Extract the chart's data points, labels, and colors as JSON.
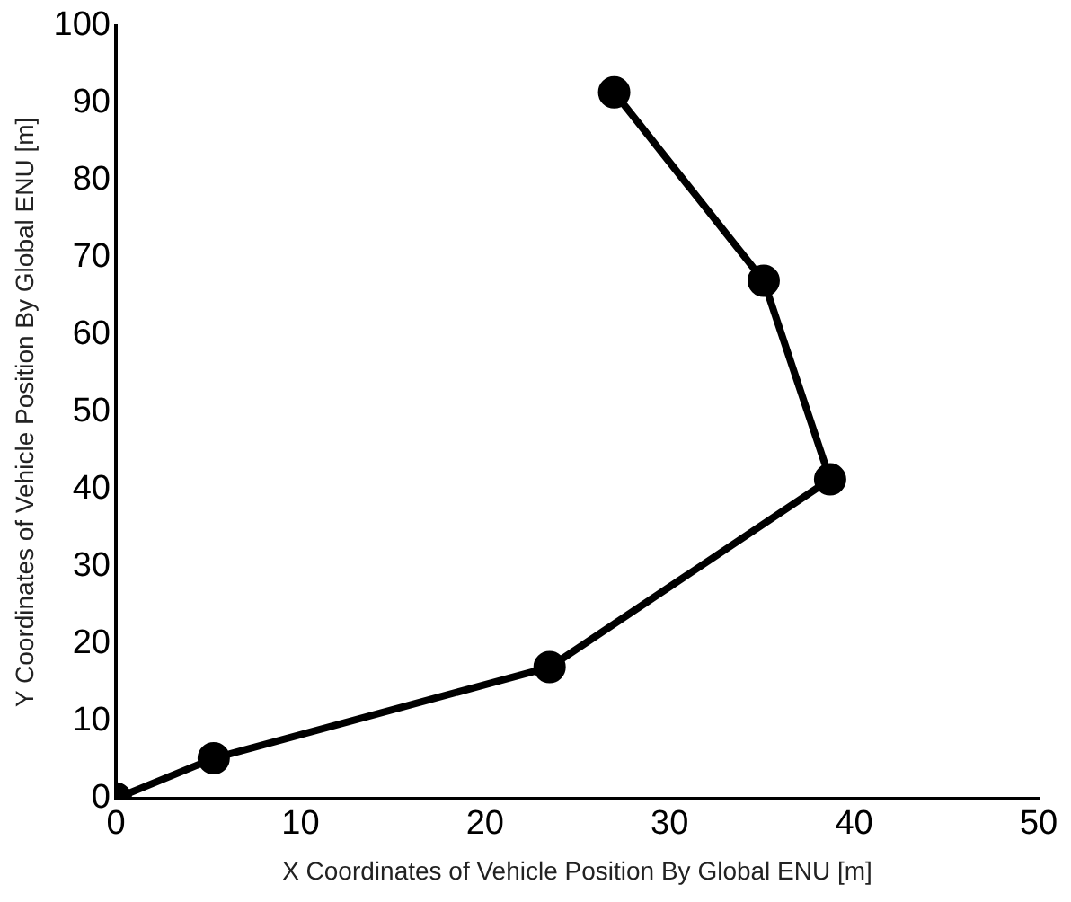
{
  "chart_data": {
    "type": "line",
    "xlabel": "X Coordinates of Vehicle Position By Global ENU [m]",
    "ylabel": "Y Coordinates of Vehicle Position By Global ENU [m]",
    "x": [
      0,
      5.3,
      23.5,
      38.7,
      35.1,
      27
    ],
    "series": [
      {
        "color": "#000000",
        "values": [
          0,
          5.2,
          17,
          41.3,
          67,
          91.4
        ]
      }
    ],
    "xlim": [
      0,
      50
    ],
    "xticks": [
      0,
      10,
      20,
      30,
      40,
      50
    ],
    "ylim": [
      0,
      100
    ],
    "yticks": [
      0,
      10,
      20,
      30,
      40,
      50,
      60,
      70,
      80,
      90,
      100
    ],
    "grid": false,
    "legend": false,
    "marker": "circle",
    "line_style": "solid"
  }
}
